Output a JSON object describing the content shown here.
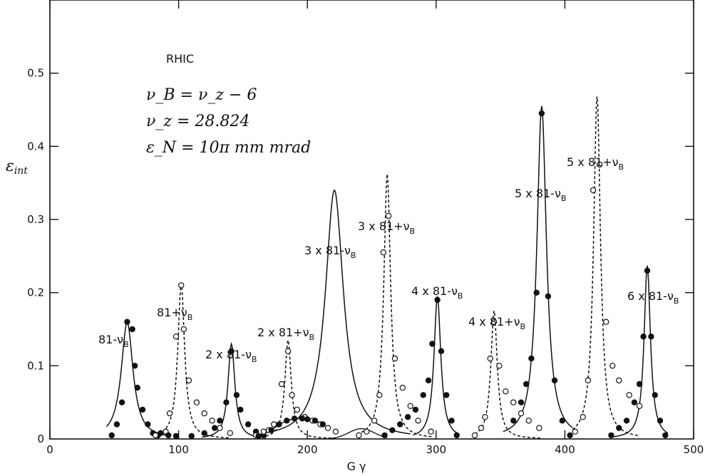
{
  "chart_data": {
    "type": "line",
    "title": "",
    "xlabel": "G γ",
    "ylabel": "ε",
    "ylabel_sub": "int",
    "xlim": [
      0,
      500
    ],
    "ylim": [
      0,
      0.6
    ],
    "x_ticks": [
      0,
      100,
      200,
      300,
      400,
      500
    ],
    "y_ticks": [
      0,
      0.1,
      0.2,
      0.3,
      0.4,
      0.5
    ],
    "y_tick_labels": [
      "0",
      "0.1",
      "0.2",
      "0.3",
      "0.4",
      "0.5"
    ],
    "x_tick_labels": [
      "0",
      "100",
      "200",
      "300",
      "400",
      "500"
    ],
    "grid": false,
    "params": {
      "machine": "RHIC",
      "line1": "ν_B = ν_z − 6",
      "line2": "ν_z = 28.824",
      "line3": "ε_N = 10π mm mrad"
    },
    "series": [
      {
        "style": "solid",
        "marker": "filled",
        "center": 60,
        "peak": 0.16,
        "label": "81-ν",
        "label_sub": "B",
        "points": [
          [
            48,
            0.005
          ],
          [
            52,
            0.02
          ],
          [
            56,
            0.05
          ],
          [
            60,
            0.16
          ],
          [
            64,
            0.15
          ],
          [
            66,
            0.1
          ],
          [
            68,
            0.07
          ],
          [
            72,
            0.04
          ],
          [
            76,
            0.02
          ],
          [
            80,
            0.008
          ],
          [
            84,
            0.005
          ]
        ]
      },
      {
        "style": "dashed",
        "marker": "open",
        "center": 102,
        "peak": 0.212,
        "label": "81+ν",
        "label_sub": "B",
        "points": [
          [
            82,
            0.005
          ],
          [
            90,
            0.01
          ],
          [
            93,
            0.035
          ],
          [
            98,
            0.14
          ],
          [
            102,
            0.21
          ],
          [
            104,
            0.15
          ],
          [
            108,
            0.08
          ],
          [
            114,
            0.05
          ],
          [
            120,
            0.035
          ],
          [
            126,
            0.025
          ],
          [
            132,
            0.015
          ],
          [
            140,
            0.008
          ]
        ]
      },
      {
        "style": "solid",
        "marker": "filled",
        "center": 141,
        "peak": 0.13,
        "label": "2 x 81-ν",
        "label_sub": "B",
        "points": [
          [
            86,
            0.008
          ],
          [
            92,
            0.005
          ],
          [
            98,
            0.004
          ],
          [
            110,
            0.004
          ],
          [
            120,
            0.008
          ],
          [
            128,
            0.015
          ],
          [
            132,
            0.025
          ],
          [
            137,
            0.05
          ],
          [
            141,
            0.12
          ],
          [
            145,
            0.06
          ],
          [
            148,
            0.04
          ],
          [
            154,
            0.02
          ],
          [
            160,
            0.01
          ],
          [
            166,
            0.005
          ]
        ]
      },
      {
        "style": "dashed",
        "marker": "open",
        "center": 185,
        "peak": 0.135,
        "label": "2 x 81+ν",
        "label_sub": "B",
        "points": [
          [
            160,
            0.005
          ],
          [
            166,
            0.01
          ],
          [
            170,
            0.012
          ],
          [
            174,
            0.02
          ],
          [
            180,
            0.075
          ],
          [
            185,
            0.12
          ],
          [
            188,
            0.06
          ],
          [
            192,
            0.04
          ],
          [
            198,
            0.03
          ],
          [
            204,
            0.025
          ],
          [
            210,
            0.02
          ],
          [
            216,
            0.015
          ],
          [
            222,
            0.01
          ]
        ]
      },
      {
        "style": "solid",
        "marker": "none",
        "center": 221,
        "peak": 0.34,
        "label": "3 x 81-ν",
        "label_sub": "B",
        "points": []
      },
      {
        "style": "solid",
        "marker": "filled",
        "center": 221,
        "peak": 0.03,
        "label": "",
        "label_sub": "",
        "points": [
          [
            162,
            0.004
          ],
          [
            172,
            0.012
          ],
          [
            178,
            0.02
          ],
          [
            184,
            0.025
          ],
          [
            190,
            0.028
          ],
          [
            196,
            0.028
          ],
          [
            200,
            0.027
          ],
          [
            206,
            0.025
          ],
          [
            212,
            0.02
          ]
        ]
      },
      {
        "style": "dashed",
        "marker": "open",
        "center": 262,
        "peak": 0.362,
        "label": "3 x 81+ν",
        "label_sub": "B",
        "points": [
          [
            240,
            0.005
          ],
          [
            246,
            0.01
          ],
          [
            252,
            0.025
          ],
          [
            256,
            0.06
          ],
          [
            259,
            0.255
          ],
          [
            263,
            0.305
          ],
          [
            268,
            0.11
          ],
          [
            274,
            0.07
          ],
          [
            280,
            0.045
          ],
          [
            286,
            0.025
          ],
          [
            296,
            0.01
          ]
        ]
      },
      {
        "style": "solid",
        "marker": "filled",
        "center": 301,
        "peak": 0.195,
        "label": "4 x 81-ν",
        "label_sub": "B",
        "points": [
          [
            260,
            0.005
          ],
          [
            266,
            0.012
          ],
          [
            272,
            0.02
          ],
          [
            278,
            0.03
          ],
          [
            284,
            0.04
          ],
          [
            290,
            0.06
          ],
          [
            294,
            0.08
          ],
          [
            297,
            0.13
          ],
          [
            301,
            0.19
          ],
          [
            304,
            0.12
          ],
          [
            308,
            0.06
          ],
          [
            312,
            0.025
          ],
          [
            316,
            0.005
          ]
        ]
      },
      {
        "style": "dashed",
        "marker": "open",
        "center": 345,
        "peak": 0.175,
        "label": "4 x 81+ν",
        "label_sub": "B",
        "points": [
          [
            330,
            0.005
          ],
          [
            335,
            0.015
          ],
          [
            338,
            0.03
          ],
          [
            342,
            0.11
          ],
          [
            345,
            0.16
          ],
          [
            349,
            0.1
          ],
          [
            354,
            0.065
          ],
          [
            360,
            0.05
          ],
          [
            366,
            0.035
          ],
          [
            372,
            0.025
          ],
          [
            380,
            0.015
          ]
        ]
      },
      {
        "style": "solid",
        "marker": "filled",
        "center": 382,
        "peak": 0.455,
        "label": "5 x 81-ν",
        "label_sub": "B",
        "points": [
          [
            360,
            0.025
          ],
          [
            366,
            0.05
          ],
          [
            370,
            0.075
          ],
          [
            374,
            0.11
          ],
          [
            378,
            0.2
          ],
          [
            382,
            0.445
          ],
          [
            387,
            0.195
          ],
          [
            392,
            0.08
          ],
          [
            398,
            0.025
          ],
          [
            404,
            0.005
          ]
        ]
      },
      {
        "style": "dashed",
        "marker": "open",
        "center": 425,
        "peak": 0.468,
        "label": "5 x 81+ν",
        "label_sub": "B",
        "points": [
          [
            408,
            0.01
          ],
          [
            414,
            0.03
          ],
          [
            418,
            0.08
          ],
          [
            422,
            0.34
          ],
          [
            427,
            0.375
          ],
          [
            432,
            0.16
          ],
          [
            437,
            0.1
          ],
          [
            442,
            0.08
          ],
          [
            450,
            0.06
          ],
          [
            458,
            0.045
          ]
        ]
      },
      {
        "style": "solid",
        "marker": "filled",
        "center": 464,
        "peak": 0.237,
        "label": "6 x 81-ν",
        "label_sub": "B",
        "points": [
          [
            436,
            0.005
          ],
          [
            442,
            0.015
          ],
          [
            448,
            0.025
          ],
          [
            454,
            0.05
          ],
          [
            458,
            0.075
          ],
          [
            461,
            0.14
          ],
          [
            464,
            0.23
          ],
          [
            467,
            0.14
          ],
          [
            470,
            0.06
          ],
          [
            474,
            0.025
          ],
          [
            478,
            0.005
          ]
        ]
      }
    ]
  }
}
